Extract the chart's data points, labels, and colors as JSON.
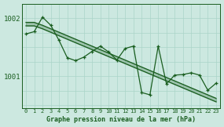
{
  "xlabel": "Graphe pression niveau de la mer (hPa)",
  "x_ticks": [
    0,
    1,
    2,
    3,
    4,
    5,
    6,
    7,
    8,
    9,
    10,
    11,
    12,
    13,
    14,
    15,
    16,
    17,
    18,
    19,
    20,
    21,
    22,
    23
  ],
  "ylim": [
    1000.45,
    1002.25
  ],
  "yticks": [
    1001.0,
    1002.0
  ],
  "bg_color": "#cce8e0",
  "grid_color": "#aad4c8",
  "line_color": "#1a5e20",
  "main_line": [
    1001.73,
    1001.77,
    1002.02,
    1001.88,
    1001.62,
    1001.32,
    1001.27,
    1001.33,
    1001.43,
    1001.52,
    1001.42,
    1001.28,
    1001.48,
    1001.52,
    1000.72,
    1000.68,
    1001.52,
    1000.87,
    1001.02,
    1001.03,
    1001.06,
    1001.02,
    1000.76,
    1000.88
  ],
  "trend_upper": [
    1001.93,
    1001.93,
    1001.88,
    1001.82,
    1001.76,
    1001.7,
    1001.64,
    1001.58,
    1001.52,
    1001.46,
    1001.4,
    1001.34,
    1001.28,
    1001.22,
    1001.16,
    1001.1,
    1001.04,
    1000.98,
    1000.92,
    1000.86,
    1000.8,
    1000.74,
    1000.68,
    1000.62
  ],
  "trend_lower": [
    1001.87,
    1001.87,
    1001.82,
    1001.76,
    1001.7,
    1001.64,
    1001.58,
    1001.52,
    1001.46,
    1001.4,
    1001.34,
    1001.28,
    1001.22,
    1001.16,
    1001.1,
    1001.04,
    1000.98,
    1000.92,
    1000.86,
    1000.8,
    1000.74,
    1000.68,
    1000.62,
    1000.56
  ]
}
